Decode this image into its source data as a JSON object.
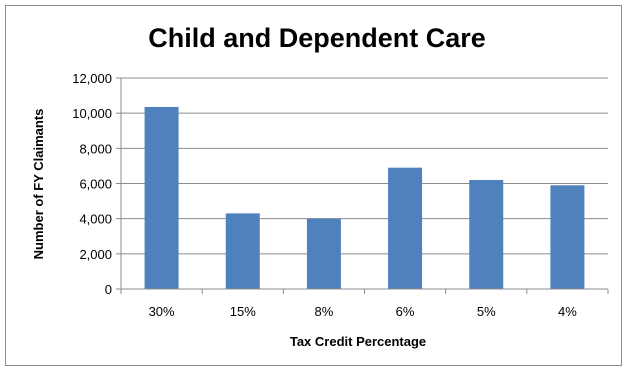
{
  "chart_data": {
    "type": "bar",
    "title": "Child and Dependent Care",
    "xlabel": "Tax Credit Percentage",
    "ylabel": "Number of FY Claimants",
    "categories": [
      "30%",
      "15%",
      "8%",
      "6%",
      "5%",
      "4%"
    ],
    "values": [
      10350,
      4300,
      4000,
      6900,
      6200,
      5900
    ],
    "ylim": [
      0,
      12000
    ],
    "yticks": [
      "0",
      "2,000",
      "4,000",
      "6,000",
      "8,000",
      "10,000",
      "12,000"
    ],
    "grid": true,
    "legend": "none",
    "bar_color": "#4f81bd"
  }
}
